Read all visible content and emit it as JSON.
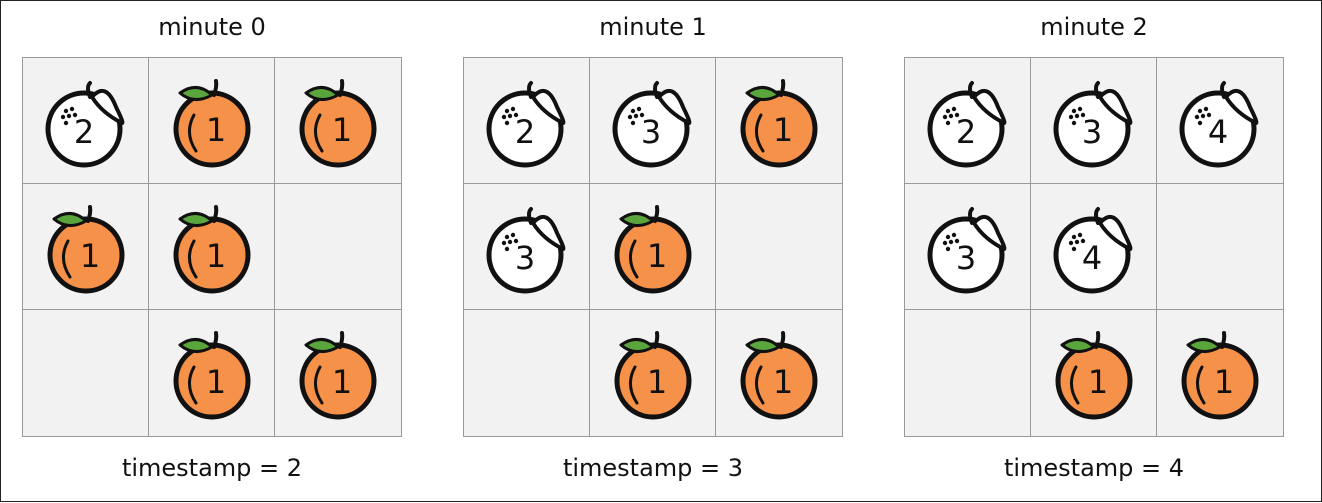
{
  "colors": {
    "fresh": "#F6914A",
    "rotten": "#FFFFFF",
    "leaf": "#5BA63C",
    "outline": "#111111",
    "cell_bg": "#F2F2F2",
    "grid_line": "#9A9A9A"
  },
  "icons": {
    "fresh": "fresh-orange-icon",
    "rotten": "rotten-orange-icon"
  },
  "panels": [
    {
      "title": "minute 0",
      "footer": "timestamp = 2",
      "grid": [
        [
          {
            "type": "rotten",
            "value": "2"
          },
          {
            "type": "fresh",
            "value": "1"
          },
          {
            "type": "fresh",
            "value": "1"
          }
        ],
        [
          {
            "type": "fresh",
            "value": "1"
          },
          {
            "type": "fresh",
            "value": "1"
          },
          null
        ],
        [
          null,
          {
            "type": "fresh",
            "value": "1"
          },
          {
            "type": "fresh",
            "value": "1"
          }
        ]
      ]
    },
    {
      "title": "minute 1",
      "footer": "timestamp = 3",
      "grid": [
        [
          {
            "type": "rotten",
            "value": "2"
          },
          {
            "type": "rotten",
            "value": "3"
          },
          {
            "type": "fresh",
            "value": "1"
          }
        ],
        [
          {
            "type": "rotten",
            "value": "3"
          },
          {
            "type": "fresh",
            "value": "1"
          },
          null
        ],
        [
          null,
          {
            "type": "fresh",
            "value": "1"
          },
          {
            "type": "fresh",
            "value": "1"
          }
        ]
      ]
    },
    {
      "title": "minute 2",
      "footer": "timestamp = 4",
      "grid": [
        [
          {
            "type": "rotten",
            "value": "2"
          },
          {
            "type": "rotten",
            "value": "3"
          },
          {
            "type": "rotten",
            "value": "4"
          }
        ],
        [
          {
            "type": "rotten",
            "value": "3"
          },
          {
            "type": "rotten",
            "value": "4"
          },
          null
        ],
        [
          null,
          {
            "type": "fresh",
            "value": "1"
          },
          {
            "type": "fresh",
            "value": "1"
          }
        ]
      ]
    }
  ]
}
